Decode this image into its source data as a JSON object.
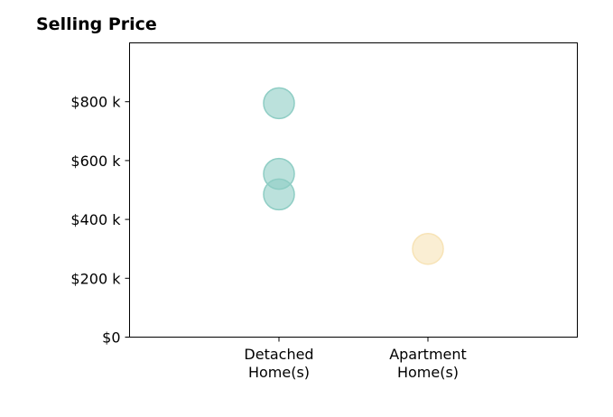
{
  "chart_data": {
    "type": "scatter",
    "title": "Selling Price",
    "xlabel": "",
    "ylabel": "",
    "categories": [
      [
        "Detached",
        "Home(s)"
      ],
      [
        "Apartment",
        "Home(s)"
      ]
    ],
    "ylim": [
      0,
      1000
    ],
    "yticks": [
      0,
      200,
      400,
      600,
      800
    ],
    "ytick_labels": [
      "$0",
      "$200 k",
      "$400 k",
      "$600 k",
      "$800 k"
    ],
    "grid": false,
    "points": [
      {
        "category": 0,
        "value": 795,
        "color": "#8ecdc4"
      },
      {
        "category": 0,
        "value": 555,
        "color": "#8ecdc4"
      },
      {
        "category": 0,
        "value": 485,
        "color": "#8ecdc4"
      },
      {
        "category": 1,
        "value": 300,
        "color": "#f7e3b6"
      }
    ]
  }
}
